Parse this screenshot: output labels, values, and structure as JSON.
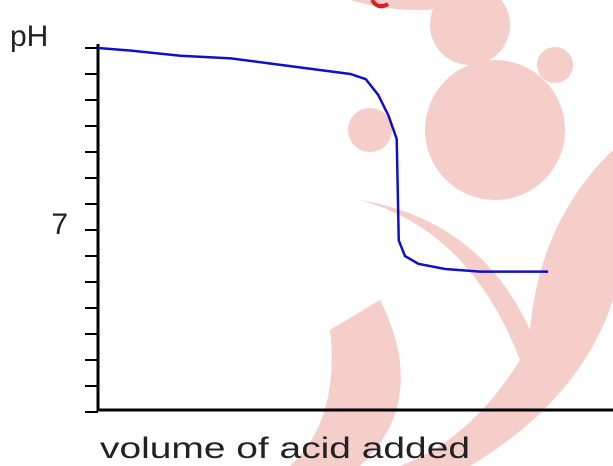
{
  "chart_data": {
    "type": "line",
    "y_label": "pH",
    "x_label": "volume of acid added",
    "x": [
      0,
      3.2,
      8.0,
      12.9,
      16.8,
      20.6,
      24.5,
      26.0,
      27.2,
      28.2,
      29.0,
      29.2,
      29.8,
      31.1,
      33.7,
      37.1,
      43.7
    ],
    "series": [
      {
        "color": "#1010c8",
        "values": [
          14.0,
          13.9,
          13.7,
          13.6,
          13.4,
          13.2,
          13.0,
          12.8,
          12.2,
          11.4,
          10.5,
          6.6,
          6.0,
          5.7,
          5.5,
          5.4,
          5.4
        ]
      }
    ],
    "xlim": [
      0,
      50
    ],
    "ylim": [
      0,
      14
    ],
    "yticks": [
      7
    ],
    "minor_yticks": [
      0,
      1,
      2,
      3,
      4,
      5,
      6,
      7,
      8,
      9,
      10,
      11,
      12,
      13,
      14
    ]
  }
}
